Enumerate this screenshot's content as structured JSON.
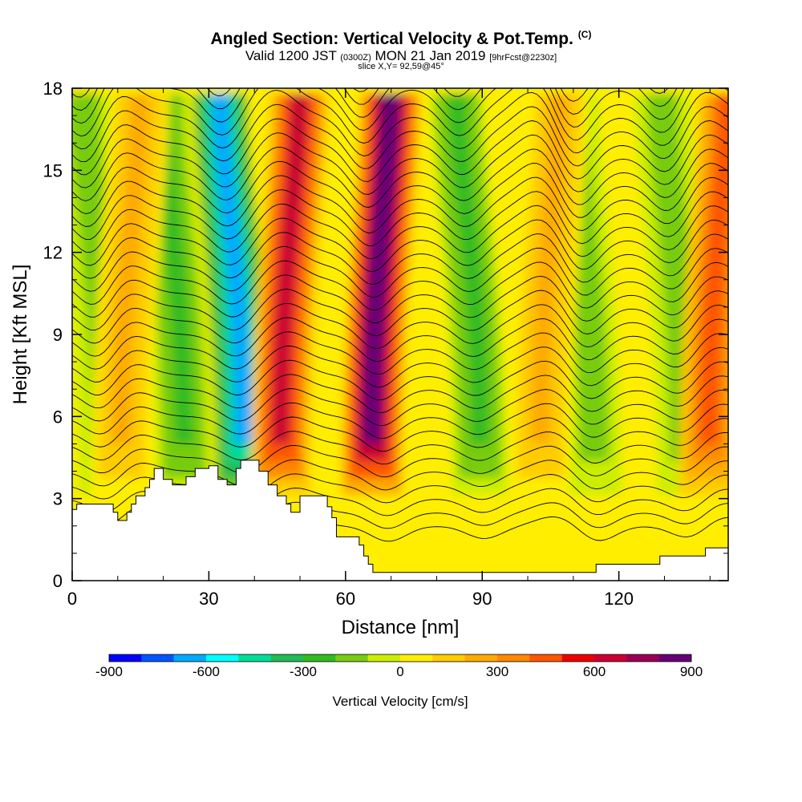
{
  "header": {
    "title": "Angled Section: Vertical Velocity & Pot.Temp.",
    "title_unit": "(C)",
    "subtitle_valid": "Valid 1200 JST",
    "subtitle_utc": "(0300Z)",
    "subtitle_date": "MON 21 Jan 2019",
    "subtitle_fcst": "[9hrFcst@2230z]",
    "slice": "slice X,Y= 92,59@45°"
  },
  "chart_data": {
    "type": "heatmap",
    "xlabel": "Distance [nm]",
    "ylabel": "Height [Kft MSL]",
    "xlim": [
      0,
      144
    ],
    "ylim": [
      0,
      18
    ],
    "x_ticks": [
      "0",
      "30",
      "60",
      "90",
      "120"
    ],
    "x_tick_values": [
      0,
      30,
      60,
      90,
      120
    ],
    "y_ticks": [
      "0",
      "3",
      "6",
      "9",
      "12",
      "15",
      "18"
    ],
    "y_tick_values": [
      0,
      3,
      6,
      9,
      12,
      15,
      18
    ],
    "colorbar": {
      "label": "Vertical Velocity [cm/s]",
      "range": [
        -900,
        900
      ],
      "tick_labels": [
        "-900",
        "-600",
        "-300",
        "0",
        "300",
        "600",
        "900"
      ],
      "tick_values": [
        -900,
        -600,
        -300,
        0,
        300,
        600,
        900
      ],
      "colors": [
        "#0000ff",
        "#0055ff",
        "#00aaff",
        "#00ffff",
        "#00dd99",
        "#22bb55",
        "#33bb22",
        "#77cc11",
        "#ccee00",
        "#ffee00",
        "#ffcc00",
        "#ffaa00",
        "#ff8800",
        "#ff5500",
        "#ee0000",
        "#cc0033",
        "#990055",
        "#660077"
      ]
    },
    "updraft_cores": [
      {
        "x": 12,
        "w": 250
      },
      {
        "x": 47,
        "w": 650
      },
      {
        "x": 67,
        "w": 900
      },
      {
        "x": 104,
        "w": 250
      },
      {
        "x": 141,
        "w": 450
      }
    ],
    "downdraft_cores": [
      {
        "x": 6,
        "w": -200
      },
      {
        "x": 23,
        "w": -250
      },
      {
        "x": 36,
        "w": -650
      },
      {
        "x": 88,
        "w": -250
      },
      {
        "x": 113,
        "w": -150
      },
      {
        "x": 133,
        "w": -200
      }
    ],
    "terrain": [
      {
        "x": 0,
        "h": 2.6
      },
      {
        "x": 1,
        "h": 2.8
      },
      {
        "x": 9,
        "h": 2.5
      },
      {
        "x": 10,
        "h": 2.2
      },
      {
        "x": 12,
        "h": 2.5
      },
      {
        "x": 13,
        "h": 2.8
      },
      {
        "x": 14,
        "h": 3.1
      },
      {
        "x": 16,
        "h": 3.4
      },
      {
        "x": 17,
        "h": 3.7
      },
      {
        "x": 18,
        "h": 4.1
      },
      {
        "x": 20,
        "h": 3.7
      },
      {
        "x": 22,
        "h": 3.5
      },
      {
        "x": 24,
        "h": 3.5
      },
      {
        "x": 25,
        "h": 3.8
      },
      {
        "x": 27,
        "h": 4.1
      },
      {
        "x": 30,
        "h": 4.2
      },
      {
        "x": 32,
        "h": 3.7
      },
      {
        "x": 34,
        "h": 3.5
      },
      {
        "x": 36,
        "h": 4.1
      },
      {
        "x": 37,
        "h": 4.4
      },
      {
        "x": 41,
        "h": 4.0
      },
      {
        "x": 43,
        "h": 3.5
      },
      {
        "x": 45,
        "h": 3.1
      },
      {
        "x": 47,
        "h": 2.8
      },
      {
        "x": 48,
        "h": 2.5
      },
      {
        "x": 50,
        "h": 3.1
      },
      {
        "x": 53,
        "h": 3.1
      },
      {
        "x": 56,
        "h": 2.7
      },
      {
        "x": 57,
        "h": 2.3
      },
      {
        "x": 58,
        "h": 1.6
      },
      {
        "x": 61,
        "h": 1.6
      },
      {
        "x": 63,
        "h": 1.3
      },
      {
        "x": 64,
        "h": 0.9
      },
      {
        "x": 65,
        "h": 0.6
      },
      {
        "x": 66,
        "h": 0.3
      },
      {
        "x": 100,
        "h": 0.3
      },
      {
        "x": 114,
        "h": 0.3
      },
      {
        "x": 115,
        "h": 0.6
      },
      {
        "x": 128,
        "h": 0.6
      },
      {
        "x": 129,
        "h": 0.9
      },
      {
        "x": 138,
        "h": 0.9
      },
      {
        "x": 139,
        "h": 1.2
      },
      {
        "x": 144,
        "h": 1.2
      }
    ]
  }
}
